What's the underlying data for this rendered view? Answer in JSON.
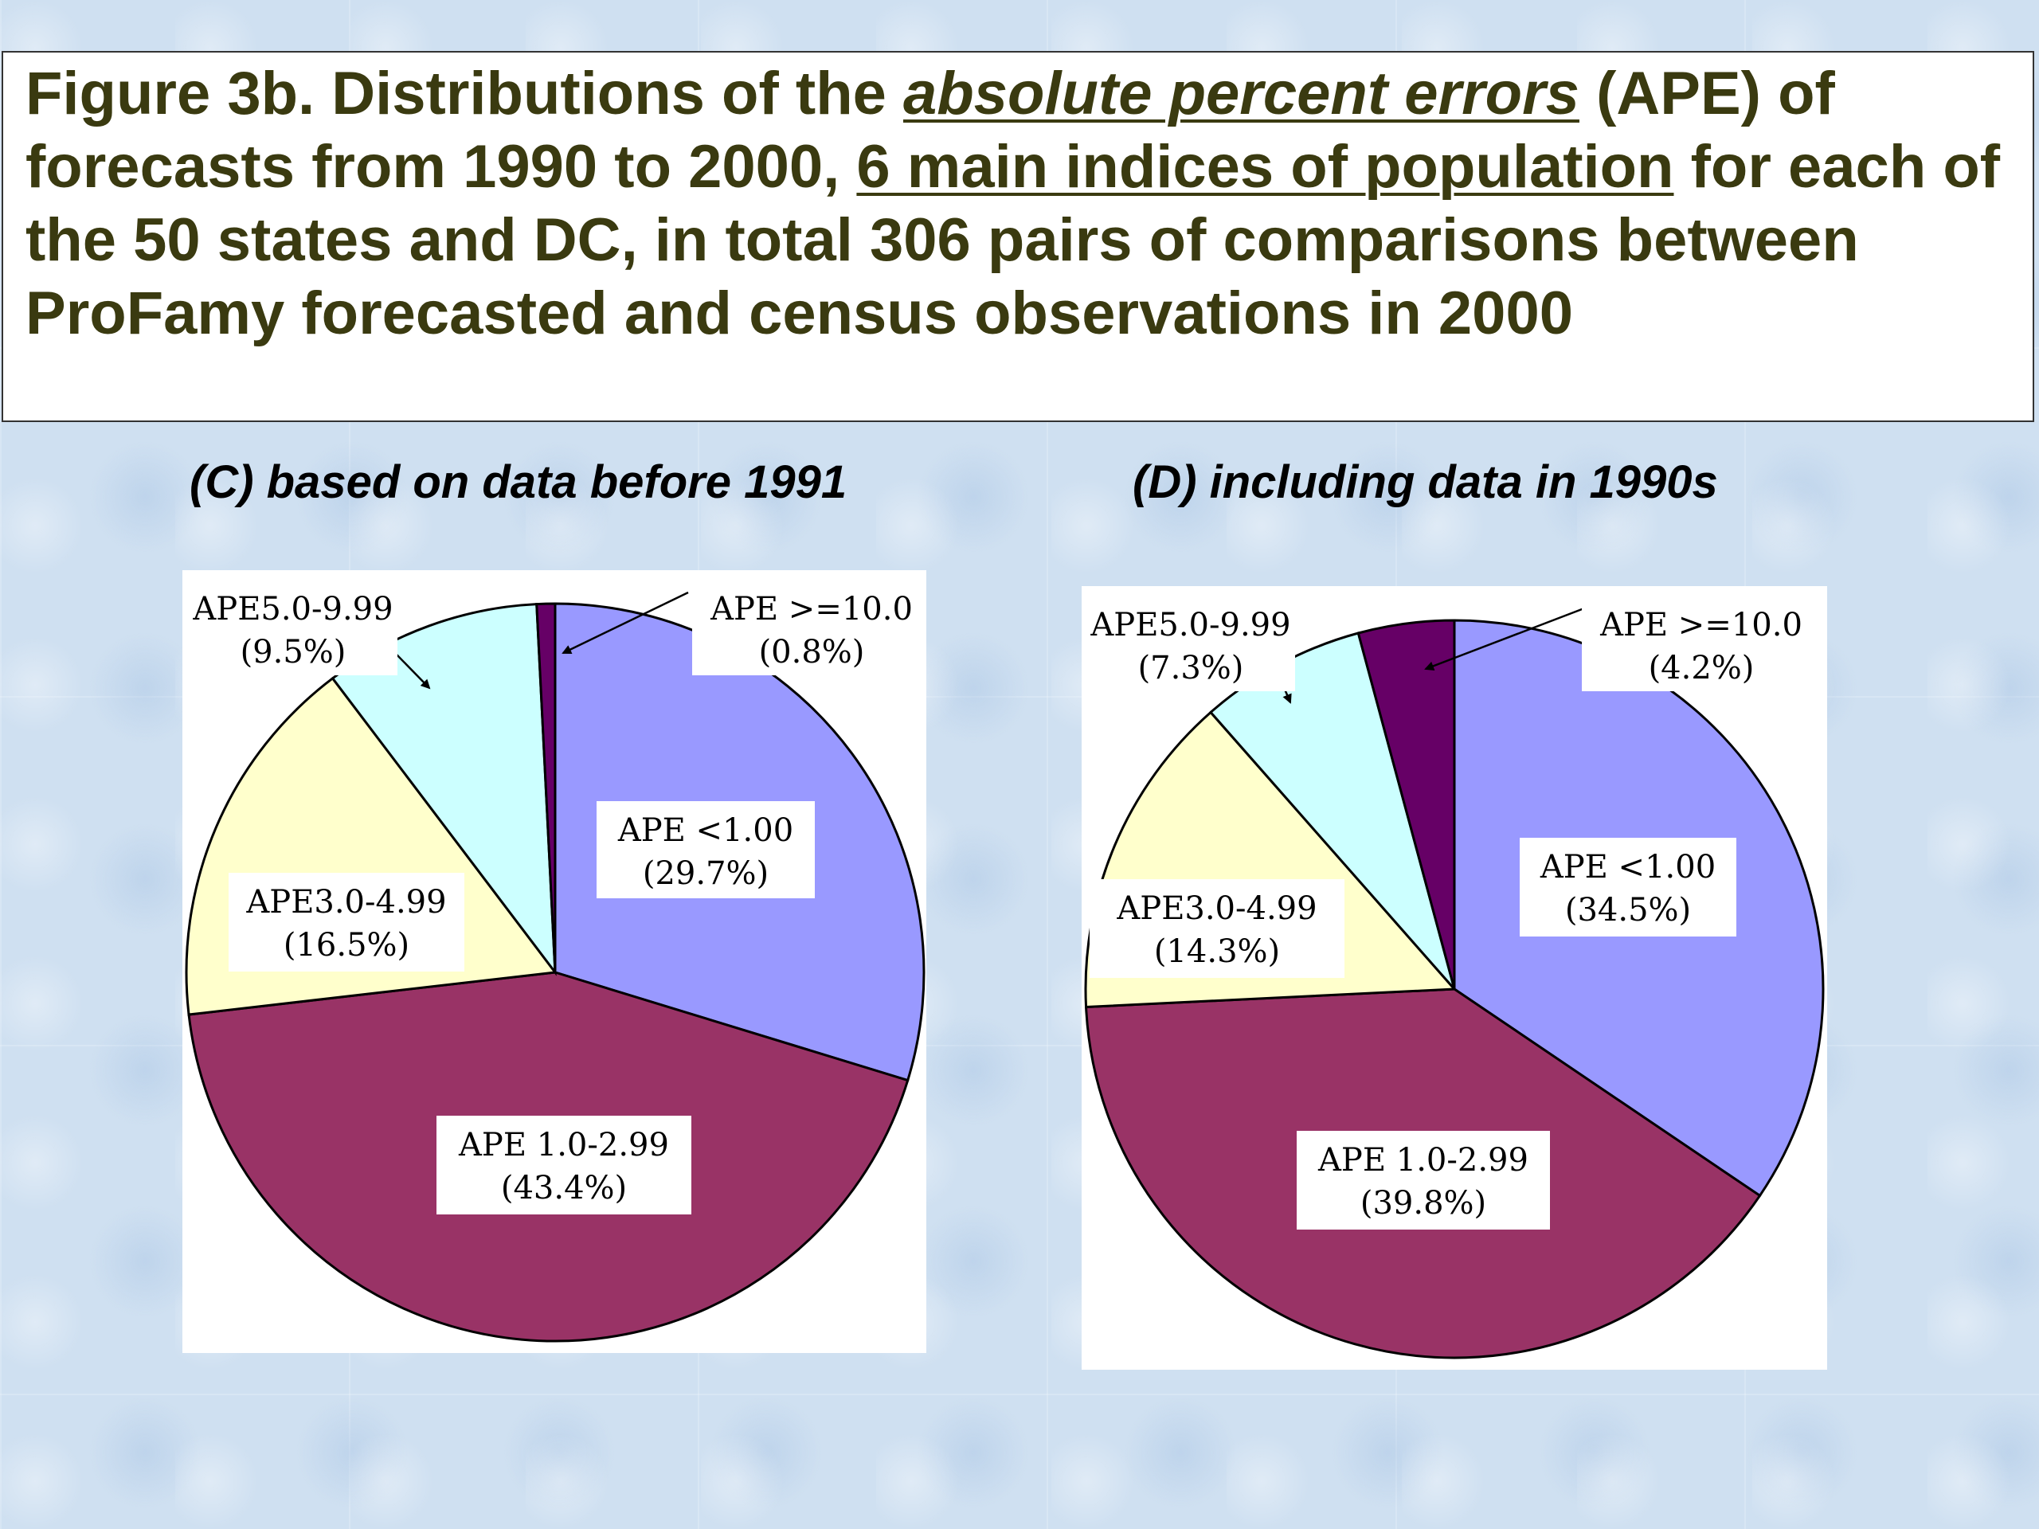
{
  "title": {
    "part1": "Figure 3b. Distributions of the ",
    "part2": "absolute percent errors",
    "part3": " (APE) of forecasts from 1990 to 2000, ",
    "part4": "6 main indices of population",
    "part5": " for each of the 50 states and DC, in total 306 pairs of comparisons between ProFamy forecasted and census observations in 2000"
  },
  "chart_data": [
    {
      "type": "pie",
      "title": "(C) based on data before 1991",
      "slices": [
        {
          "label": "APE <1.00",
          "value": 29.7,
          "value_label": "(29.7%)",
          "color": "#9999ff"
        },
        {
          "label": "APE 1.0-2.99",
          "value": 43.4,
          "value_label": "(43.4%)",
          "color": "#993366"
        },
        {
          "label": "APE3.0-4.99",
          "value": 16.5,
          "value_label": "(16.5%)",
          "color": "#ffffcc"
        },
        {
          "label": "APE5.0-9.99",
          "value": 9.5,
          "value_label": "(9.5%)",
          "color": "#ccffff"
        },
        {
          "label": "APE >=10.0",
          "value": 0.8,
          "value_label": "(0.8%)",
          "color": "#660066"
        }
      ]
    },
    {
      "type": "pie",
      "title": "(D) including data in 1990s",
      "slices": [
        {
          "label": "APE <1.00",
          "value": 34.5,
          "value_label": "(34.5%)",
          "color": "#9999ff"
        },
        {
          "label": "APE 1.0-2.99",
          "value": 39.8,
          "value_label": "(39.8%)",
          "color": "#993366"
        },
        {
          "label": "APE3.0-4.99",
          "value": 14.3,
          "value_label": "(14.3%)",
          "color": "#ffffcc"
        },
        {
          "label": "APE5.0-9.99",
          "value": 7.3,
          "value_label": "(7.3%)",
          "color": "#ccffff"
        },
        {
          "label": "APE >=10.0",
          "value": 4.2,
          "value_label": "(4.2%)",
          "color": "#660066"
        }
      ]
    }
  ]
}
